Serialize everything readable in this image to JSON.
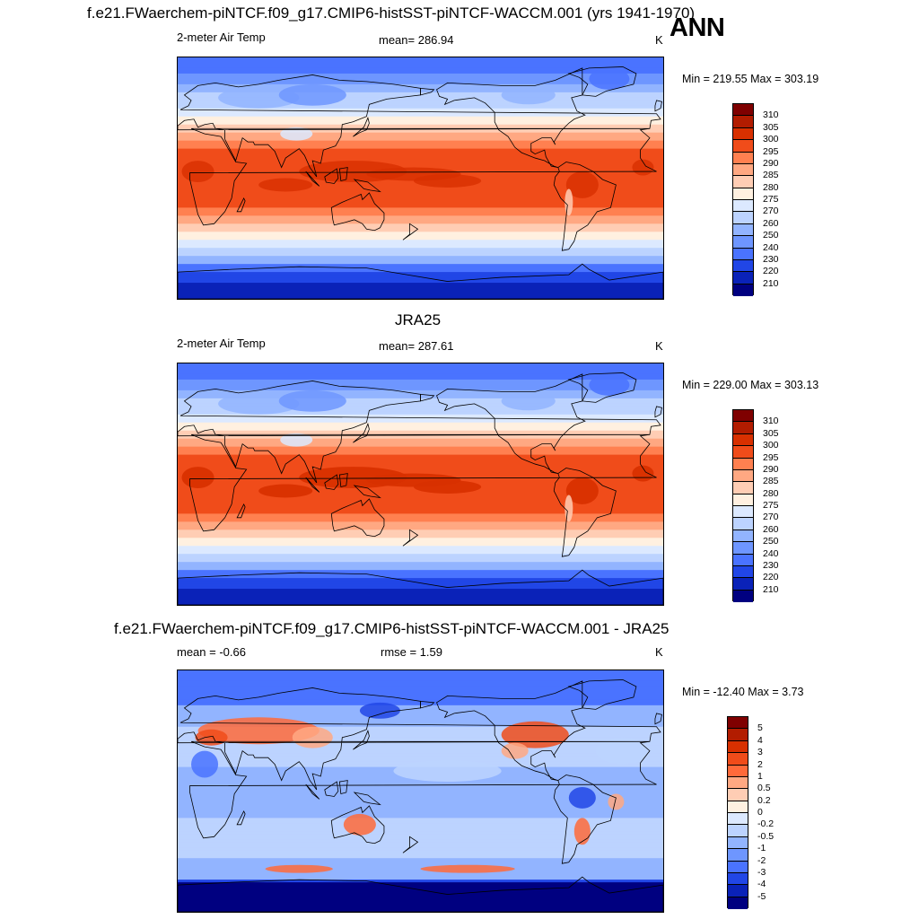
{
  "season": "ANN",
  "panels": [
    {
      "title": "f.e21.FWaerchem-piNTCF.f09_g17.CMIP6-histSST-piNTCF-WACCM.001 (yrs 1941-1970)",
      "left": "2-meter Air Temp",
      "center": "mean= 286.94",
      "units": "K",
      "minmax": "Min = 219.55 Max = 303.19"
    },
    {
      "title": "JRA25",
      "left": "2-meter Air Temp",
      "center": "mean= 287.61",
      "units": "K",
      "minmax": "Min = 229.00 Max = 303.13"
    },
    {
      "title": "f.e21.FWaerchem-piNTCF.f09_g17.CMIP6-histSST-piNTCF-WACCM.001 - JRA25",
      "left": "mean =  -0.66",
      "center": "rmse =   1.59",
      "units": "K",
      "minmax": "Min = -12.40 Max =   3.73"
    }
  ],
  "colorbars": {
    "temperature": {
      "labels": [
        "310",
        "305",
        "300",
        "295",
        "290",
        "285",
        "280",
        "275",
        "270",
        "260",
        "250",
        "240",
        "230",
        "220",
        "210"
      ],
      "colors": [
        "#7f0000",
        "#b21c00",
        "#d83000",
        "#f04c1a",
        "#ff8050",
        "#ffa882",
        "#ffcdb4",
        "#fff0e0",
        "#dce9ff",
        "#bcd3ff",
        "#92b4ff",
        "#6e96ff",
        "#4a73ff",
        "#2146e6",
        "#0a22b8",
        "#000080"
      ]
    },
    "difference": {
      "labels": [
        "5",
        "4",
        "3",
        "2",
        "1",
        "0.5",
        "0.2",
        "0",
        "-0.2",
        "-0.5",
        "-1",
        "-2",
        "-3",
        "-4",
        "-5"
      ],
      "colors": [
        "#7f0000",
        "#b21c00",
        "#d83000",
        "#f04c1a",
        "#ff6a3a",
        "#ffa882",
        "#ffcdb4",
        "#fff0e0",
        "#dce9ff",
        "#bcd3ff",
        "#92b4ff",
        "#6e96ff",
        "#4a73ff",
        "#2146e6",
        "#0a22b8",
        "#000080"
      ]
    }
  }
}
